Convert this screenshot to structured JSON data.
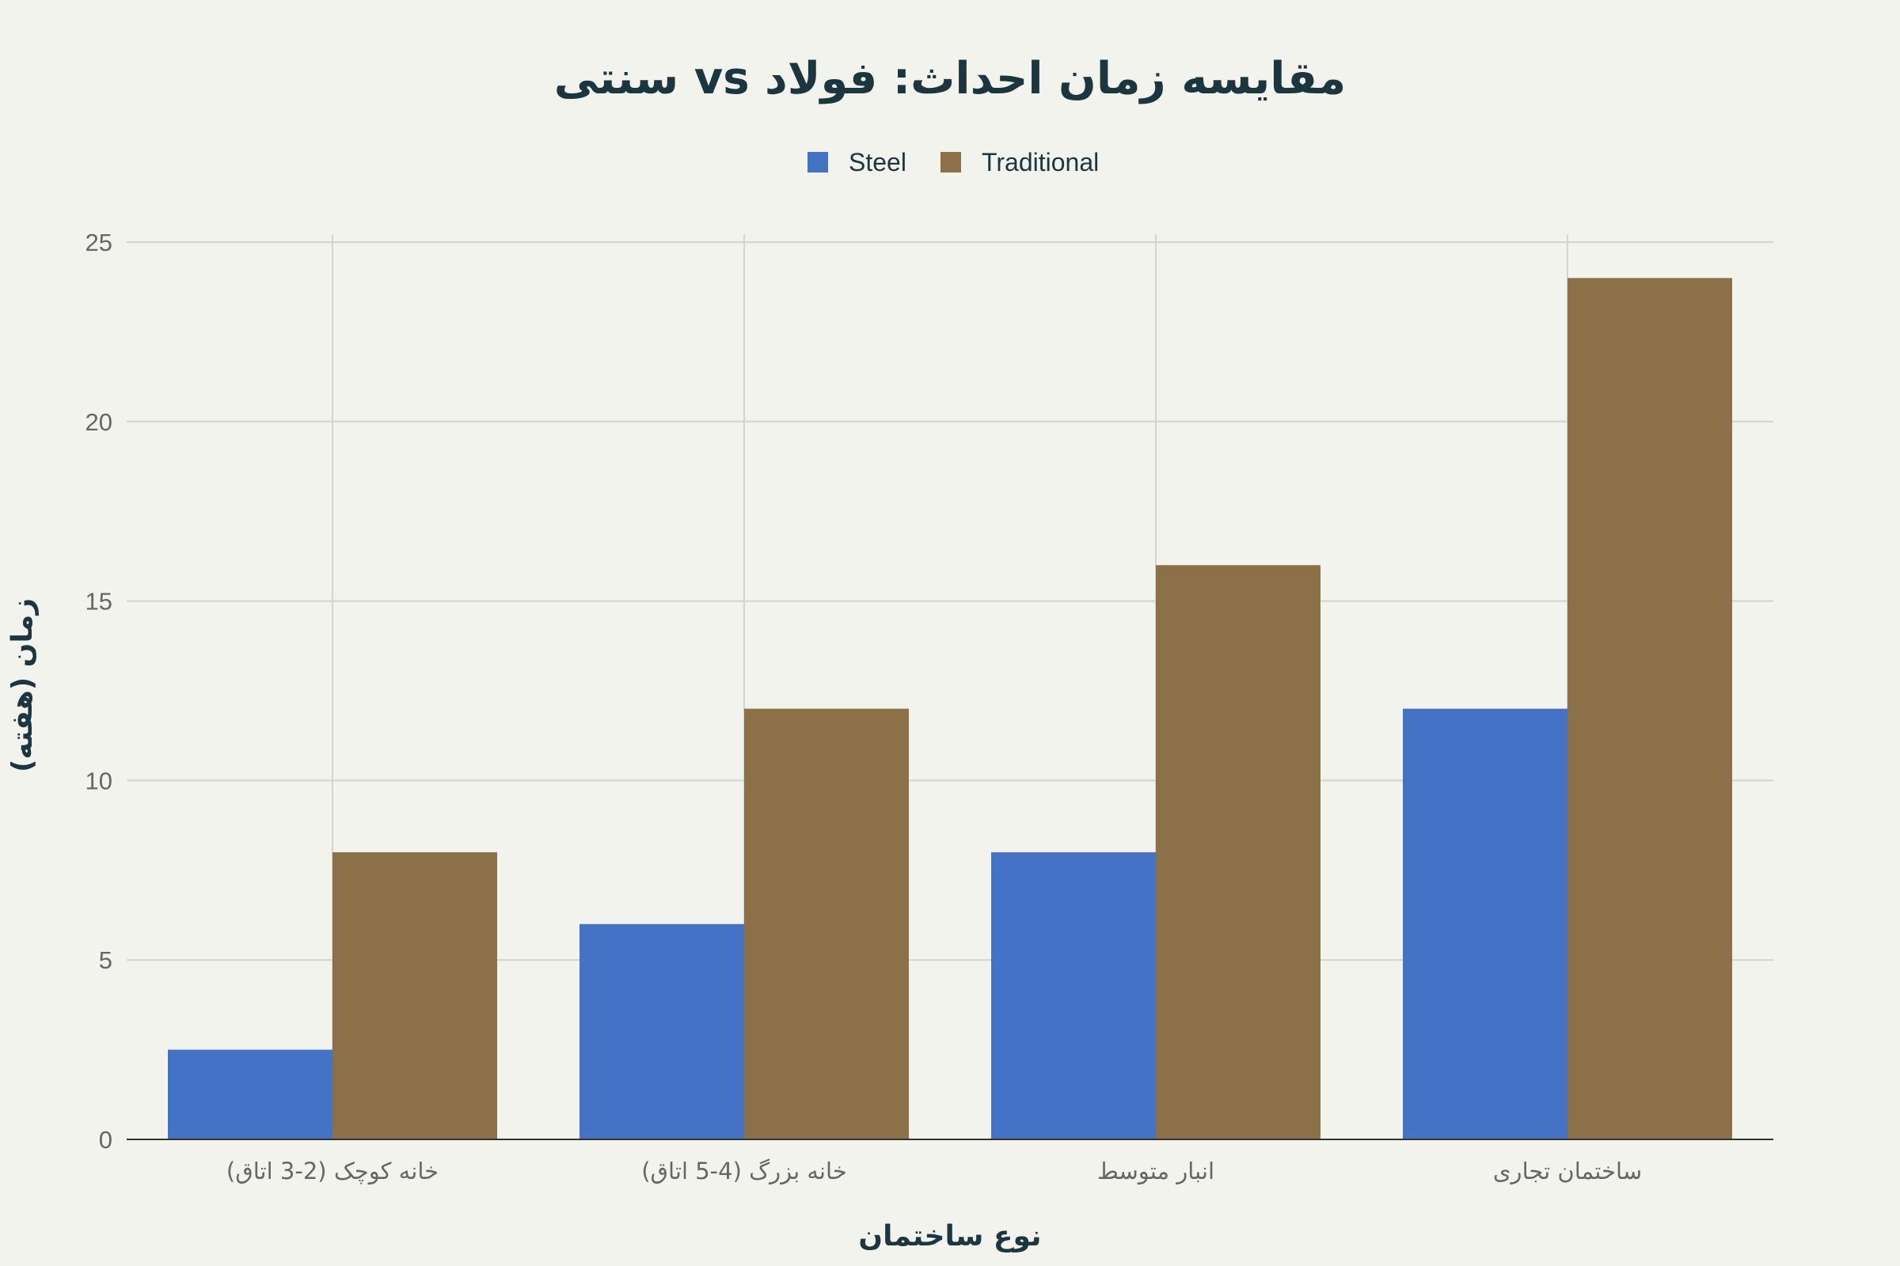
{
  "chart_data": {
    "type": "bar",
    "title": "مقایسه زمان احداث: فولاد vs سنتی",
    "xlabel": "نوع ساختمان",
    "ylabel": "زمان (هفته)",
    "categories": [
      "خانه کوچک (2-3 اتاق)",
      "خانه بزرگ (4-5 اتاق)",
      "انبار متوسط",
      "ساختمان تجاری"
    ],
    "series": [
      {
        "name": "Steel",
        "color": "#4472c4",
        "values": [
          2.5,
          6,
          8,
          12
        ]
      },
      {
        "name": "Traditional",
        "color": "#8b7048",
        "values": [
          8,
          12,
          16,
          24
        ]
      }
    ],
    "ylim": [
      0,
      25
    ],
    "yticks": [
      0,
      5,
      10,
      15,
      20,
      25
    ],
    "grid": true,
    "legend": "top-center"
  }
}
